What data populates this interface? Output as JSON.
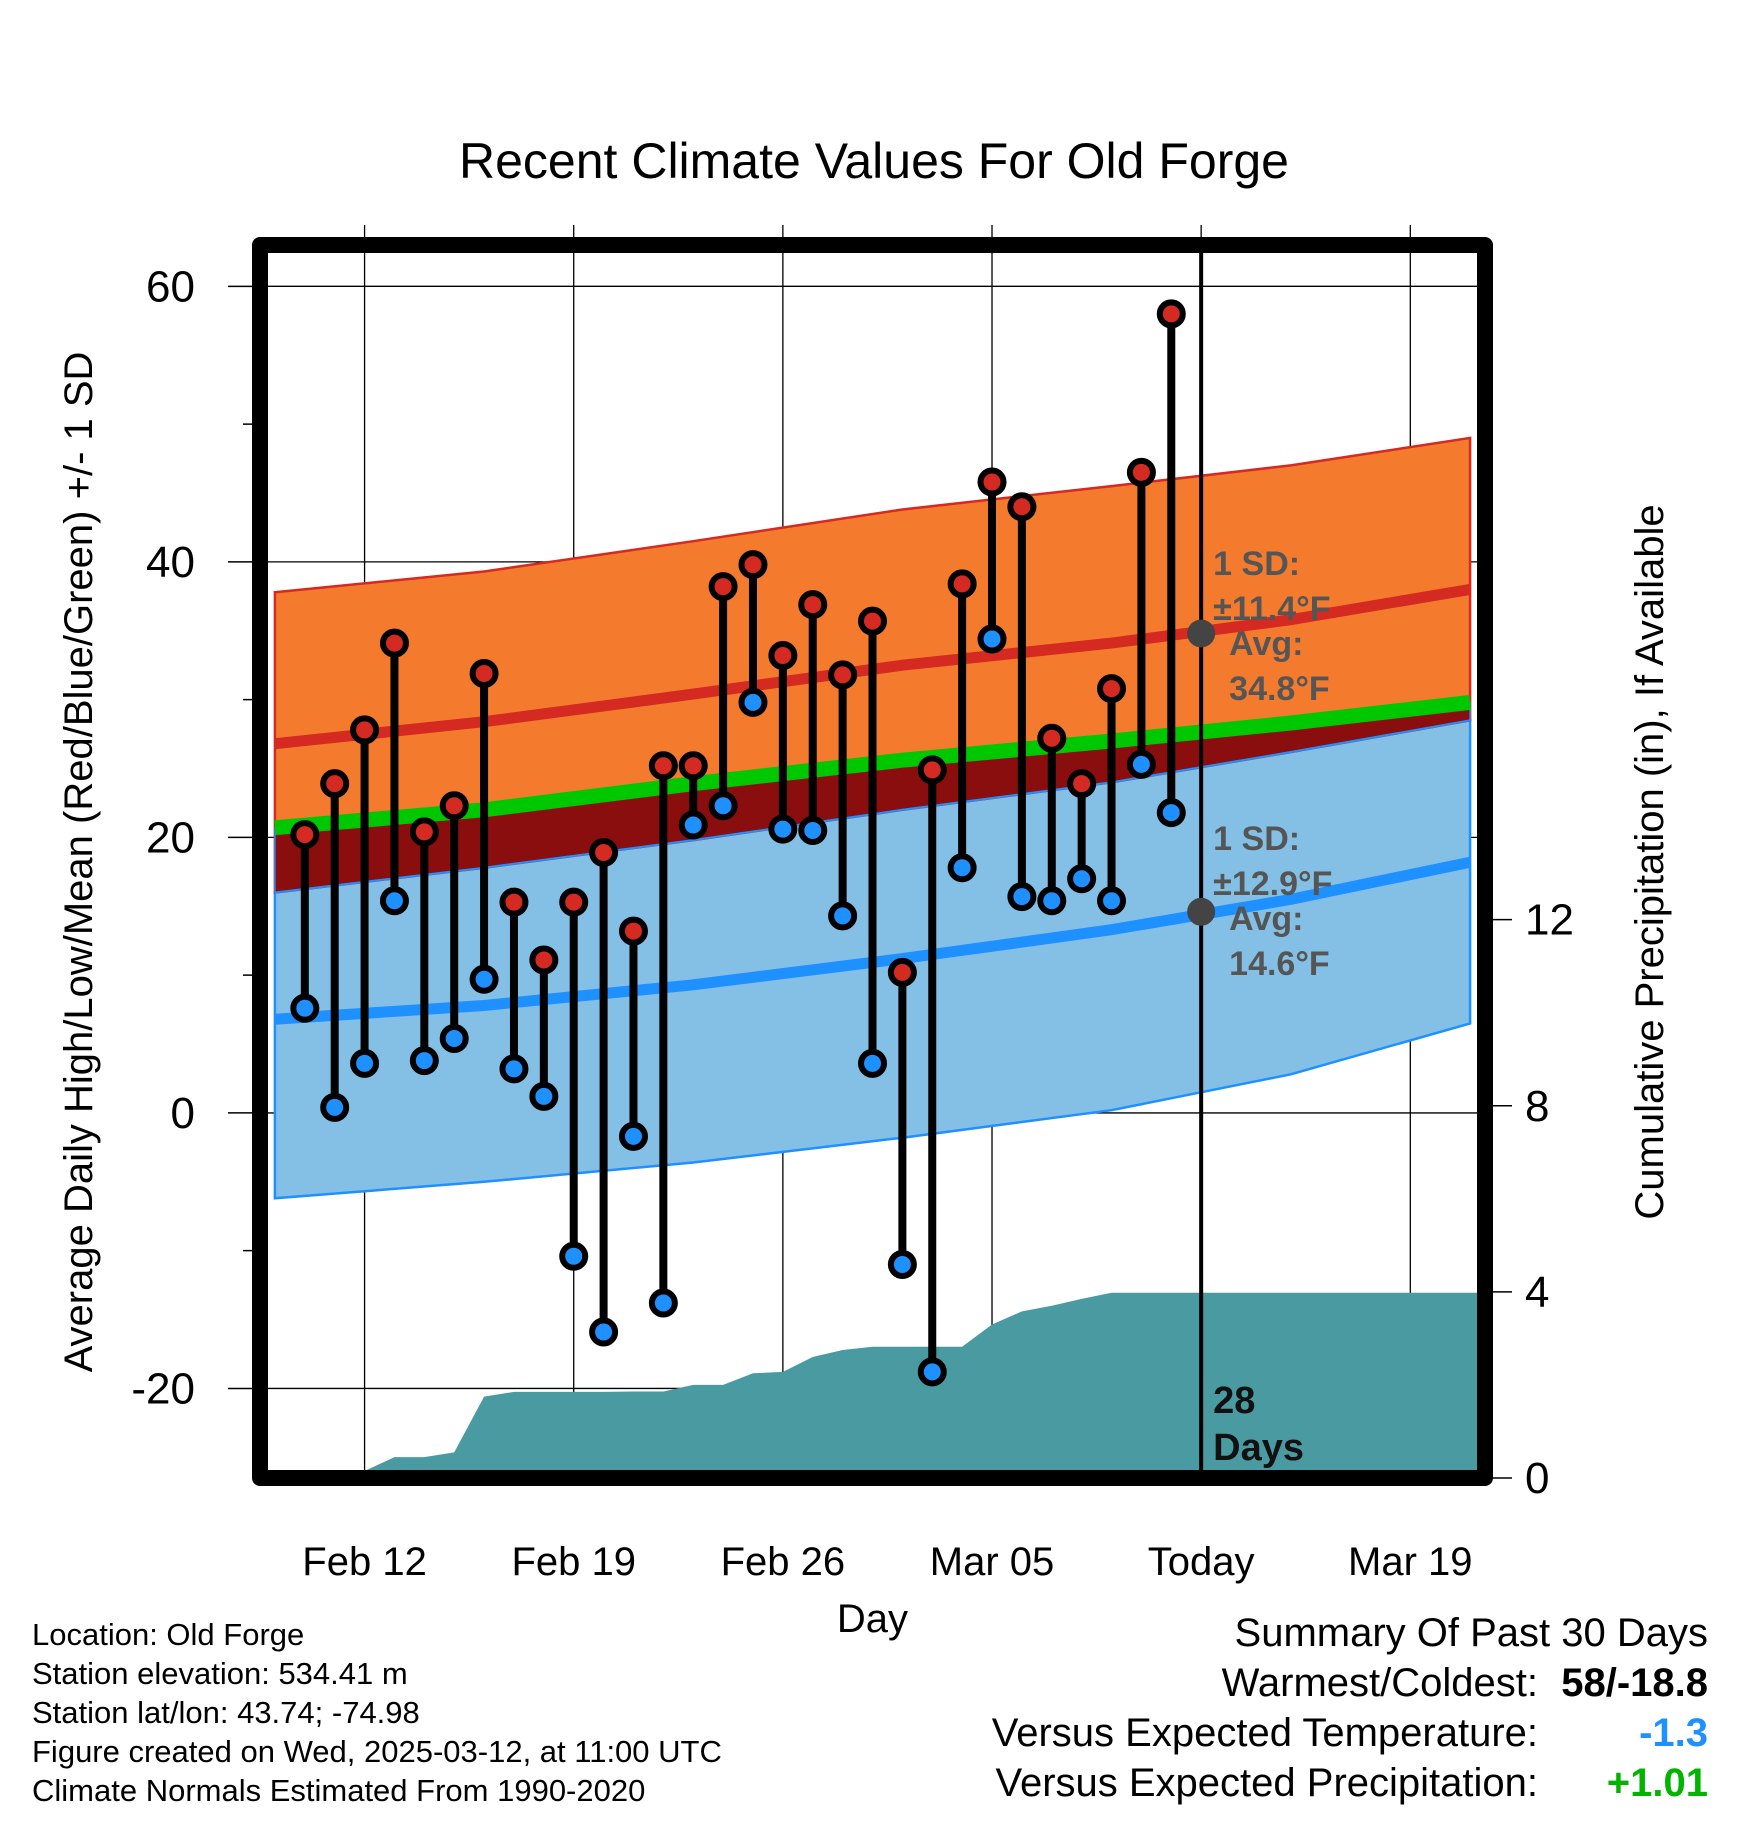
{
  "title": "Recent Climate Values For Old Forge",
  "chart_data": {
    "type": "line",
    "title": "Recent Climate Values For Old Forge",
    "xlabel": "Day",
    "ylabel_left": "Average Daily High/Low/Mean (Red/Blue/Green) +/- 1 SD",
    "ylabel_right": "Cumulative Precipitation (in), If Available",
    "xlim_days": [
      -31.5,
      9.5
    ],
    "ylim_left": [
      -26.5,
      63
    ],
    "ylim_right": [
      0,
      26.5
    ],
    "x_ticks": [
      {
        "day": -28,
        "label": "Feb 12"
      },
      {
        "day": -21,
        "label": "Feb 19"
      },
      {
        "day": -14,
        "label": "Feb 26"
      },
      {
        "day": -7,
        "label": "Mar 05"
      },
      {
        "day": 0,
        "label": "Today"
      },
      {
        "day": 7,
        "label": "Mar 19"
      }
    ],
    "y_ticks_left": [
      "60",
      "40",
      "20",
      "0",
      "-20"
    ],
    "y_ticks_right": [
      "12",
      "8",
      "4",
      "0"
    ],
    "y_tick_values_left": [
      60,
      40,
      20,
      0,
      -20
    ],
    "y_tick_values_right": [
      12,
      8,
      4,
      0
    ],
    "normals": {
      "x": [
        -31,
        -24,
        -17,
        -10,
        -3,
        3,
        9
      ],
      "high_avg": [
        26.8,
        28.4,
        30.4,
        32.5,
        34.1,
        35.8,
        38.0
      ],
      "high_plus_sd": [
        37.8,
        39.3,
        41.5,
        43.8,
        45.5,
        47.0,
        49.0
      ],
      "high_minus_sd": [
        16.0,
        17.8,
        19.8,
        22.0,
        24.0,
        26.2,
        28.5
      ],
      "mean": [
        20.7,
        22.0,
        23.9,
        25.6,
        27.0,
        28.3,
        29.8
      ],
      "low_avg": [
        6.8,
        7.8,
        9.3,
        11.2,
        13.3,
        15.5,
        18.2
      ],
      "low_plus_sd": [
        16.0,
        17.8,
        19.8,
        22.0,
        24.0,
        26.2,
        28.5
      ],
      "low_minus_sd": [
        -6.2,
        -5.0,
        -3.6,
        -1.8,
        0.2,
        2.8,
        6.5
      ]
    },
    "observed": {
      "x": [
        -30,
        -29,
        -28,
        -27,
        -26,
        -25,
        -24,
        -23,
        -22,
        -21,
        -20,
        -19,
        -18,
        -17,
        -16,
        -15,
        -14,
        -13,
        -12,
        -11,
        -10,
        -9,
        -8,
        -7,
        -6,
        -5,
        -4,
        -3,
        -2,
        -1
      ],
      "high": [
        20.2,
        23.9,
        27.8,
        34.1,
        20.4,
        22.3,
        31.9,
        15.3,
        11.1,
        15.3,
        18.9,
        13.2,
        25.2,
        25.2,
        38.2,
        39.8,
        33.2,
        36.9,
        31.8,
        35.7,
        10.2,
        24.9,
        38.4,
        45.8,
        44.0,
        27.2,
        23.9,
        30.8,
        46.5,
        58.0
      ],
      "low": [
        7.6,
        0.4,
        3.6,
        15.4,
        3.8,
        5.4,
        9.7,
        3.2,
        1.2,
        -10.4,
        -15.9,
        -1.7,
        -13.8,
        20.9,
        22.3,
        29.8,
        20.6,
        20.5,
        14.3,
        3.6,
        -11.0,
        -18.8,
        17.8,
        34.4,
        15.7,
        15.4,
        17.0,
        15.4,
        25.3,
        21.8
      ]
    },
    "precip_cumulative": {
      "x": [
        -31.5,
        -28.5,
        -28,
        -27,
        -26,
        -25,
        -24,
        -23,
        -22,
        -21,
        -20,
        -19,
        -18,
        -17,
        -16,
        -15,
        -14,
        -13,
        -12,
        -11,
        -10,
        -9,
        -8,
        -7,
        -6,
        -5,
        -4,
        -3,
        -2,
        -1,
        0,
        9.5
      ],
      "values": [
        0,
        0,
        0.15,
        0.45,
        0.45,
        0.55,
        1.75,
        1.85,
        1.85,
        1.85,
        1.85,
        1.86,
        1.86,
        2.0,
        2.0,
        2.25,
        2.28,
        2.6,
        2.75,
        2.82,
        2.82,
        2.82,
        2.82,
        3.3,
        3.58,
        3.7,
        3.85,
        3.98,
        3.98,
        3.98,
        3.98,
        3.98
      ]
    },
    "annotations": {
      "high_sd": "1 SD:",
      "high_sd_value": "±11.4°F",
      "high_avg": "Avg:",
      "high_avg_value": "34.8°F",
      "low_sd": "1 SD:",
      "low_sd_value": "±12.9°F",
      "low_avg": "Avg:",
      "low_avg_value": "14.6°F",
      "days": "28",
      "days_unit": "Days",
      "today_high_avg": 34.8,
      "today_low_avg": 14.6
    },
    "colors": {
      "high_band": "#f47b2e",
      "high_line": "#d42a22",
      "mean_band": "#8b0e0e",
      "mean_green": "#00c800",
      "low_band": "#84c0e6",
      "low_line": "#1e90ff",
      "precip": "#4a9aa2",
      "high_dot": "#d42a22",
      "low_dot": "#1e90ff",
      "marker_today": "#444444"
    }
  },
  "footer": {
    "location": "Location: Old Forge",
    "elevation": "Station elevation: 534.41 m",
    "latlon": "Station lat/lon: 43.74; -74.98",
    "created": "Figure created on Wed, 2025-03-12, at 11:00 UTC",
    "normals": "Climate Normals Estimated From 1990-2020"
  },
  "summary": {
    "heading": "Summary Of Past 30 Days",
    "warmest_label": "Warmest/Coldest:",
    "warmest_value": "58/-18.8",
    "temp_label": "Versus Expected Temperature:",
    "temp_value": "-1.3",
    "temp_color": "#1e90ff",
    "precip_label": "Versus Expected Precipitation:",
    "precip_value": "+1.01",
    "precip_color": "#00b400"
  }
}
